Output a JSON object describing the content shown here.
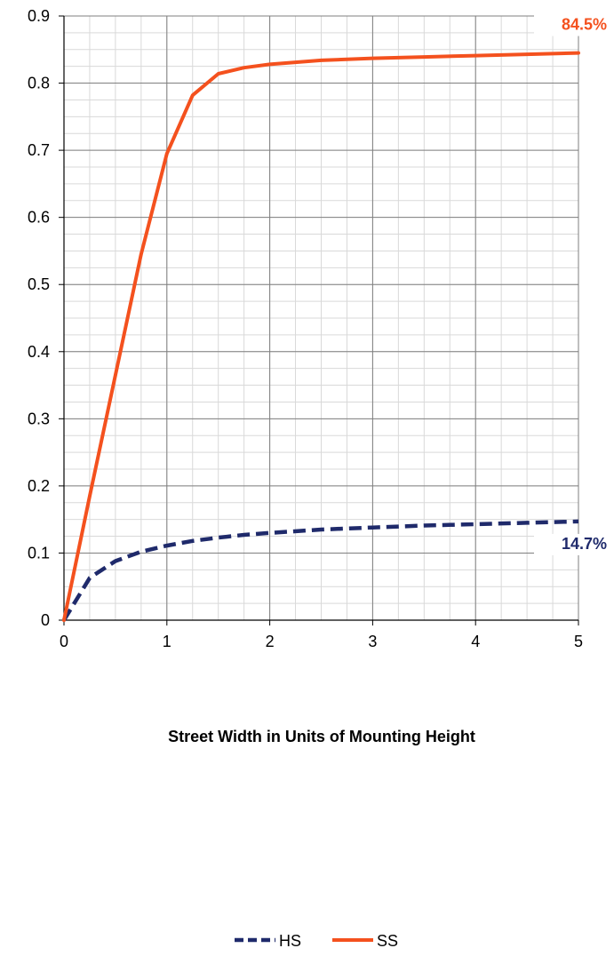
{
  "chart_data": {
    "type": "line",
    "title": "",
    "xlabel": "Street Width in Units of Mounting Height",
    "ylabel": "",
    "xlim": [
      0,
      5
    ],
    "ylim": [
      0,
      0.9
    ],
    "x_ticks": [
      "0",
      "1",
      "2",
      "3",
      "4",
      "5"
    ],
    "y_ticks": [
      "0",
      "0.1",
      "0.2",
      "0.3",
      "0.4",
      "0.5",
      "0.6",
      "0.7",
      "0.8",
      "0.9"
    ],
    "grid": true,
    "legend": "bottom",
    "series": [
      {
        "name": "HS",
        "color": "#1f2a6b",
        "style": "dashed",
        "end_label": "14.7%",
        "x": [
          0,
          0.25,
          0.5,
          0.75,
          1.0,
          1.25,
          1.5,
          1.75,
          2.0,
          2.5,
          3.0,
          3.5,
          4.0,
          4.5,
          5.0
        ],
        "y": [
          0,
          0.063,
          0.088,
          0.102,
          0.111,
          0.118,
          0.123,
          0.127,
          0.13,
          0.135,
          0.138,
          0.141,
          0.143,
          0.145,
          0.147
        ]
      },
      {
        "name": "SS",
        "color": "#f4511e",
        "style": "solid",
        "end_label": "84.5%",
        "x": [
          0,
          0.25,
          0.5,
          0.75,
          1.0,
          1.25,
          1.5,
          1.75,
          2.0,
          2.5,
          3.0,
          3.5,
          4.0,
          4.5,
          5.0
        ],
        "y": [
          0,
          0.185,
          0.365,
          0.545,
          0.695,
          0.782,
          0.814,
          0.823,
          0.828,
          0.834,
          0.837,
          0.839,
          0.841,
          0.843,
          0.845
        ]
      }
    ]
  }
}
